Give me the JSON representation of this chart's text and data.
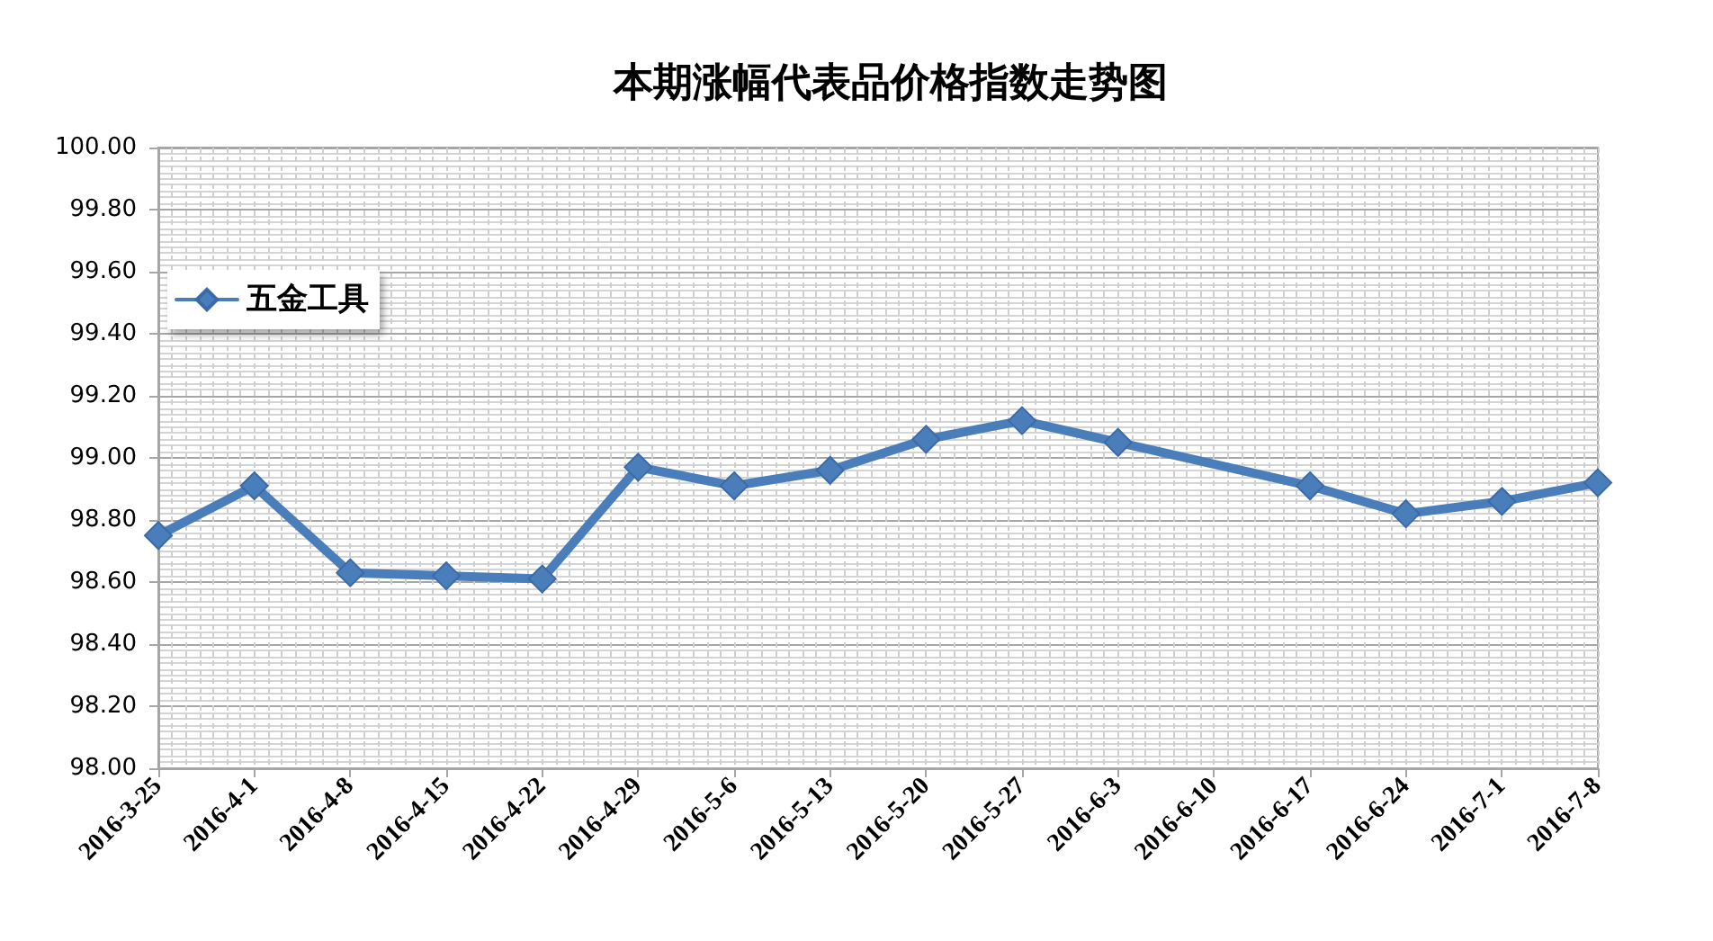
{
  "chart_data": {
    "type": "line",
    "title": "本期涨幅代表品价格指数走势图",
    "x": [
      "2016-03-25",
      "2016-04-01",
      "2016-04-08",
      "2016-04-15",
      "2016-04-22",
      "2016-04-29",
      "2016-05-06",
      "2016-05-13",
      "2016-05-20",
      "2016-05-27",
      "2016-06-03",
      "2016-06-17",
      "2016-06-24",
      "2016-07-01",
      "2016-07-08"
    ],
    "series": [
      {
        "name": "五金工具",
        "color": "#4a7ebb",
        "values": [
          98.75,
          98.91,
          98.63,
          98.62,
          98.61,
          98.97,
          98.91,
          98.96,
          99.06,
          99.12,
          99.05,
          98.91,
          98.82,
          98.86,
          98.92
        ]
      }
    ],
    "xlim": [
      "2016-03-25",
      "2016-07-08"
    ],
    "xticks": [
      {
        "value": "2016-03-25",
        "label": "2016-3-25"
      },
      {
        "value": "2016-04-01",
        "label": "2016-4-1"
      },
      {
        "value": "2016-04-08",
        "label": "2016-4-8"
      },
      {
        "value": "2016-04-15",
        "label": "2016-4-15"
      },
      {
        "value": "2016-04-22",
        "label": "2016-4-22"
      },
      {
        "value": "2016-04-29",
        "label": "2016-4-29"
      },
      {
        "value": "2016-05-06",
        "label": "2016-5-6"
      },
      {
        "value": "2016-05-13",
        "label": "2016-5-13"
      },
      {
        "value": "2016-05-20",
        "label": "2016-5-20"
      },
      {
        "value": "2016-05-27",
        "label": "2016-5-27"
      },
      {
        "value": "2016-06-03",
        "label": "2016-6-3"
      },
      {
        "value": "2016-06-10",
        "label": "2016-6-10"
      },
      {
        "value": "2016-06-17",
        "label": "2016-6-17"
      },
      {
        "value": "2016-06-24",
        "label": "2016-6-24"
      },
      {
        "value": "2016-07-01",
        "label": "2016-7-1"
      },
      {
        "value": "2016-07-08",
        "label": "2016-7-8"
      }
    ],
    "ylim": [
      98,
      100
    ],
    "yticks": [
      {
        "value": 98,
        "label": "98.00"
      },
      {
        "value": 98.2,
        "label": "98.20"
      },
      {
        "value": 98.4,
        "label": "98.40"
      },
      {
        "value": 98.6,
        "label": "98.60"
      },
      {
        "value": 98.8,
        "label": "98.80"
      },
      {
        "value": 99,
        "label": "99.00"
      },
      {
        "value": 99.2,
        "label": "99.20"
      },
      {
        "value": 99.4,
        "label": "99.40"
      },
      {
        "value": 99.6,
        "label": "99.60"
      },
      {
        "value": 99.8,
        "label": "99.80"
      },
      {
        "value": 100,
        "label": "100.00"
      }
    ],
    "grid": true,
    "legend": "top left",
    "marker": "diamond",
    "line_style": "solid"
  }
}
